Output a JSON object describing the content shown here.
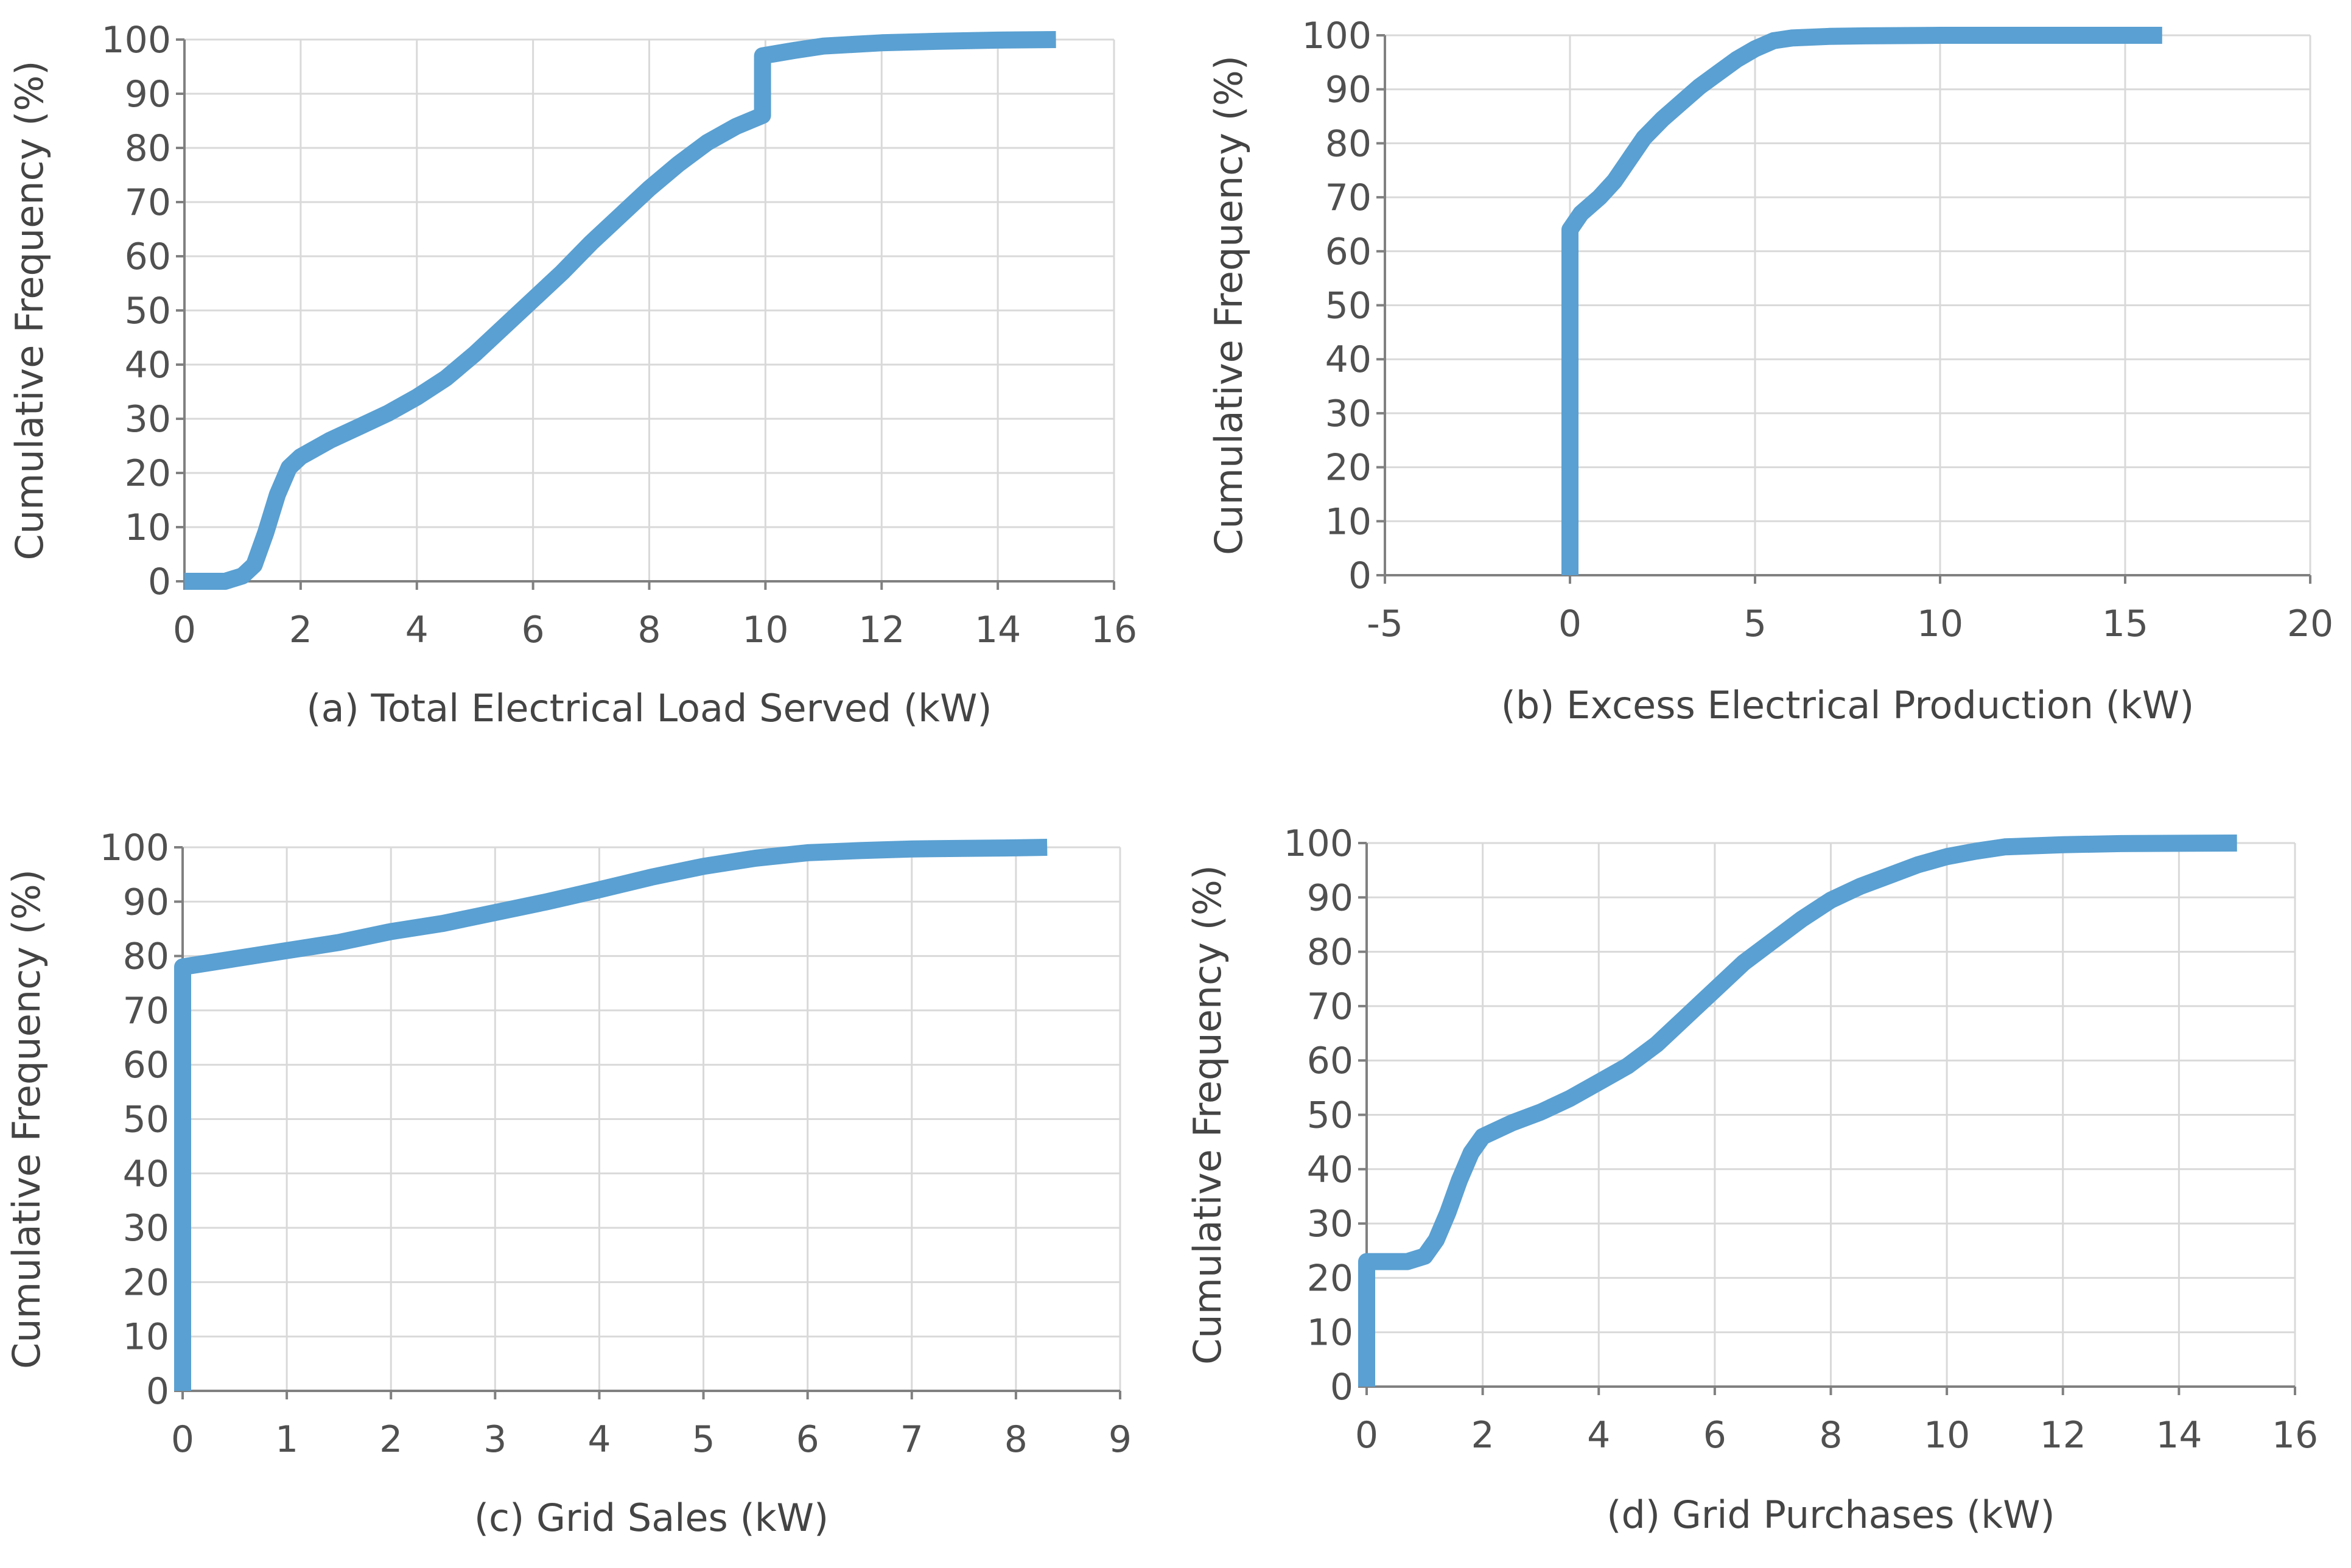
{
  "figure": {
    "line_color": "#5aa0d2",
    "grid_color": "#d9d9d9",
    "axis_color": "#808080"
  },
  "chart_data": [
    {
      "id": "a",
      "type": "line",
      "panel_label": "(a)",
      "xlabel": "Total Electrical Load Served (kW)",
      "ylabel": "Cumulative Frequency (%)",
      "xlim": [
        0,
        16
      ],
      "ylim": [
        0,
        100
      ],
      "xticks": [
        0,
        2,
        4,
        6,
        8,
        10,
        12,
        14,
        16
      ],
      "yticks": [
        0,
        10,
        20,
        30,
        40,
        50,
        60,
        70,
        80,
        90,
        100
      ],
      "grid": true,
      "series": [
        {
          "x": [
            0,
            0.7,
            1.0,
            1.2,
            1.4,
            1.6,
            1.8,
            2.0,
            2.5,
            3.0,
            3.5,
            4.0,
            4.5,
            5.0,
            5.5,
            6.0,
            6.5,
            7.0,
            7.5,
            8.0,
            8.5,
            9.0,
            9.5,
            9.95,
            9.95,
            10.5,
            11.0,
            12.0,
            13.0,
            14.0,
            15.0
          ],
          "y": [
            0,
            0,
            1,
            3,
            9,
            16,
            21,
            23,
            26,
            28.5,
            31,
            34,
            37.5,
            42,
            47,
            52,
            57,
            62.5,
            67.5,
            72.5,
            77,
            81,
            84,
            86,
            97,
            98,
            98.8,
            99.4,
            99.7,
            99.9,
            100
          ]
        }
      ]
    },
    {
      "id": "b",
      "type": "line",
      "panel_label": "(b)",
      "xlabel": "Excess Electrical Production (kW)",
      "ylabel": "Cumulative Frequency (%)",
      "xlim": [
        -5,
        20
      ],
      "ylim": [
        0,
        100
      ],
      "xticks": [
        -5,
        0,
        5,
        10,
        15,
        20
      ],
      "yticks": [
        0,
        10,
        20,
        30,
        40,
        50,
        60,
        70,
        80,
        90,
        100
      ],
      "grid": true,
      "series": [
        {
          "x": [
            0,
            0,
            0.3,
            0.8,
            1.2,
            1.6,
            2.0,
            2.5,
            3.0,
            3.5,
            4.0,
            4.5,
            5.0,
            5.5,
            6.0,
            7.0,
            8.0,
            10.0,
            12.0,
            14.0,
            16.0
          ],
          "y": [
            0,
            64,
            67,
            70,
            73,
            77,
            81,
            84.5,
            87.5,
            90.5,
            93,
            95.5,
            97.5,
            99,
            99.5,
            99.8,
            99.9,
            100,
            100,
            100,
            100
          ]
        }
      ]
    },
    {
      "id": "c",
      "type": "line",
      "panel_label": "(c)",
      "xlabel": "Grid Sales (kW)",
      "ylabel": "Cumulative Frequency (%)",
      "xlim": [
        0,
        9
      ],
      "ylim": [
        0,
        100
      ],
      "xticks": [
        0,
        1,
        2,
        3,
        4,
        5,
        6,
        7,
        8,
        9
      ],
      "yticks": [
        0,
        10,
        20,
        30,
        40,
        50,
        60,
        70,
        80,
        90,
        100
      ],
      "grid": true,
      "series": [
        {
          "x": [
            0,
            0,
            0.5,
            1.0,
            1.5,
            2.0,
            2.5,
            3.0,
            3.5,
            4.0,
            4.5,
            5.0,
            5.5,
            6.0,
            6.5,
            7.0,
            7.5,
            8.0,
            8.3
          ],
          "y": [
            0,
            78,
            79.5,
            81,
            82.5,
            84.5,
            86,
            88,
            90,
            92.2,
            94.5,
            96.5,
            98,
            99,
            99.4,
            99.7,
            99.8,
            99.9,
            100
          ]
        }
      ]
    },
    {
      "id": "d",
      "type": "line",
      "panel_label": "(d)",
      "xlabel": "Grid Purchases (kW)",
      "ylabel": "Cumulative Frequency (%)",
      "xlim": [
        0,
        16
      ],
      "ylim": [
        0,
        100
      ],
      "xticks": [
        0,
        2,
        4,
        6,
        8,
        10,
        12,
        14,
        16
      ],
      "yticks": [
        0,
        10,
        20,
        30,
        40,
        50,
        60,
        70,
        80,
        90,
        100
      ],
      "grid": true,
      "series": [
        {
          "x": [
            0,
            0,
            0.7,
            1.0,
            1.2,
            1.4,
            1.6,
            1.8,
            2.0,
            2.5,
            3.0,
            3.5,
            4.0,
            4.5,
            5.0,
            5.5,
            6.0,
            6.5,
            7.0,
            7.5,
            8.0,
            8.5,
            9.0,
            9.5,
            10.0,
            10.5,
            11.0,
            12.0,
            13.0,
            14.0,
            15.0
          ],
          "y": [
            0,
            23,
            23,
            24,
            27,
            32,
            38,
            43,
            46,
            48.5,
            50.5,
            53,
            56,
            59,
            63,
            68,
            73,
            78,
            82,
            86,
            89.5,
            92,
            94,
            96,
            97.5,
            98.5,
            99.3,
            99.7,
            99.9,
            99.95,
            100
          ]
        }
      ]
    }
  ]
}
